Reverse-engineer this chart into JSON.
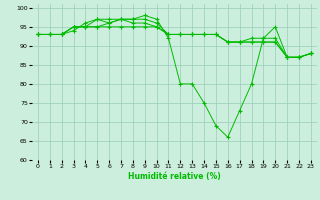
{
  "xlabel": "Humidité relative (%)",
  "background_color": "#cceedd",
  "grid_color": "#99ccbb",
  "line_color": "#00bb00",
  "xlim": [
    -0.5,
    23.5
  ],
  "ylim": [
    60,
    101
  ],
  "yticks": [
    60,
    65,
    70,
    75,
    80,
    85,
    90,
    95,
    100
  ],
  "xticks": [
    0,
    1,
    2,
    3,
    4,
    5,
    6,
    7,
    8,
    9,
    10,
    11,
    12,
    13,
    14,
    15,
    16,
    17,
    18,
    19,
    20,
    21,
    22,
    23
  ],
  "series": [
    [
      93,
      93,
      93,
      94,
      96,
      97,
      97,
      97,
      97,
      98,
      97,
      92,
      80,
      80,
      75,
      69,
      66,
      73,
      80,
      92,
      95,
      87,
      87,
      88
    ],
    [
      93,
      93,
      93,
      95,
      95,
      97,
      96,
      97,
      97,
      97,
      96,
      93,
      93,
      93,
      93,
      93,
      91,
      91,
      92,
      92,
      92,
      87,
      87,
      88
    ],
    [
      93,
      93,
      93,
      95,
      95,
      95,
      96,
      97,
      96,
      96,
      95,
      93,
      93,
      93,
      93,
      93,
      91,
      91,
      91,
      91,
      91,
      87,
      87,
      88
    ],
    [
      93,
      93,
      93,
      95,
      95,
      95,
      95,
      95,
      95,
      95,
      95,
      93,
      93,
      93,
      93,
      93,
      91,
      91,
      91,
      91,
      91,
      87,
      87,
      88
    ]
  ]
}
